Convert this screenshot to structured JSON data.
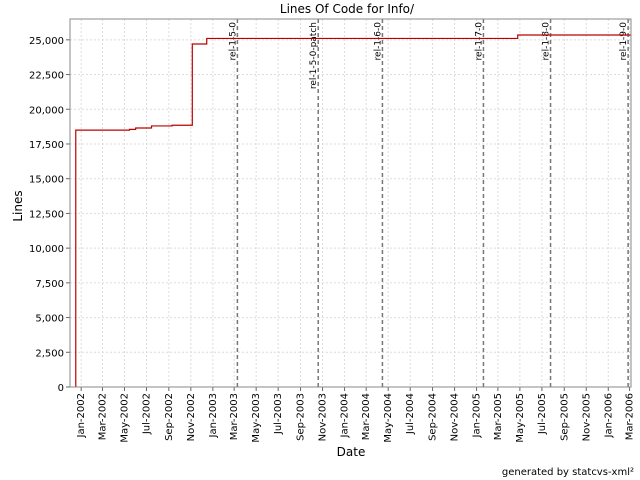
{
  "chart_data": {
    "type": "line",
    "title": "Lines Of Code for Info/",
    "xlabel": "Date",
    "ylabel": "Lines",
    "ylim": [
      0,
      26500
    ],
    "xlim": [
      "2001-12-01",
      "2006-03-05"
    ],
    "grid": true,
    "legend": "none",
    "yticks": [
      0,
      2500,
      5000,
      7500,
      10000,
      12500,
      15000,
      17500,
      20000,
      22500,
      25000
    ],
    "ytick_labels": [
      "0",
      "2,500",
      "5,000",
      "7,500",
      "10,000",
      "12,500",
      "15,000",
      "17,500",
      "20,000",
      "22,500",
      "25,000"
    ],
    "xticks": [
      "2002-01-01",
      "2002-03-01",
      "2002-05-01",
      "2002-07-01",
      "2002-09-01",
      "2002-11-01",
      "2003-01-01",
      "2003-03-01",
      "2003-05-01",
      "2003-07-01",
      "2003-09-01",
      "2003-11-01",
      "2004-01-01",
      "2004-03-01",
      "2004-05-01",
      "2004-07-01",
      "2004-09-01",
      "2004-11-01",
      "2005-01-01",
      "2005-03-01",
      "2005-05-01",
      "2005-07-01",
      "2005-09-01",
      "2005-11-01",
      "2006-01-01",
      "2006-03-01"
    ],
    "xtick_labels": [
      "Jan-2002",
      "Mar-2002",
      "May-2002",
      "Jul-2002",
      "Sep-2002",
      "Nov-2002",
      "Jan-2003",
      "Mar-2003",
      "May-2003",
      "Jul-2003",
      "Sep-2003",
      "Nov-2003",
      "Jan-2004",
      "Mar-2004",
      "May-2004",
      "Jul-2004",
      "Sep-2004",
      "Nov-2004",
      "Jan-2005",
      "Mar-2005",
      "May-2005",
      "Jul-2005",
      "Sep-2005",
      "Nov-2005",
      "Jan-2006",
      "Mar-2006"
    ],
    "series": [
      {
        "color": "#bb0000",
        "step": true,
        "points": [
          {
            "x": "2001-12-17",
            "y": 0
          },
          {
            "x": "2001-12-17",
            "y": 18500
          },
          {
            "x": "2002-05-15",
            "y": 18550
          },
          {
            "x": "2002-06-01",
            "y": 18650
          },
          {
            "x": "2002-07-15",
            "y": 18800
          },
          {
            "x": "2002-09-10",
            "y": 18850
          },
          {
            "x": "2002-11-05",
            "y": 24700
          },
          {
            "x": "2002-12-15",
            "y": 25100
          },
          {
            "x": "2005-04-25",
            "y": 25350
          },
          {
            "x": "2006-03-05",
            "y": 25350
          }
        ]
      }
    ],
    "markers": [
      {
        "label": "rel-1-5-0",
        "x": "2003-03-10"
      },
      {
        "label": "rel-1-5-0-patch",
        "x": "2003-10-20"
      },
      {
        "label": "rel-1-6-0",
        "x": "2004-04-15"
      },
      {
        "label": "rel-1-7-0",
        "x": "2005-01-20"
      },
      {
        "label": "rel-1-8-0",
        "x": "2005-07-25"
      },
      {
        "label": "rel-1-9-0",
        "x": "2006-02-25"
      }
    ],
    "colors": {
      "line": "#bb0000",
      "marker": "#777777",
      "grid": "#dcdcdc"
    }
  },
  "footer": {
    "generated_by": "generated by statcvs-xml²"
  }
}
